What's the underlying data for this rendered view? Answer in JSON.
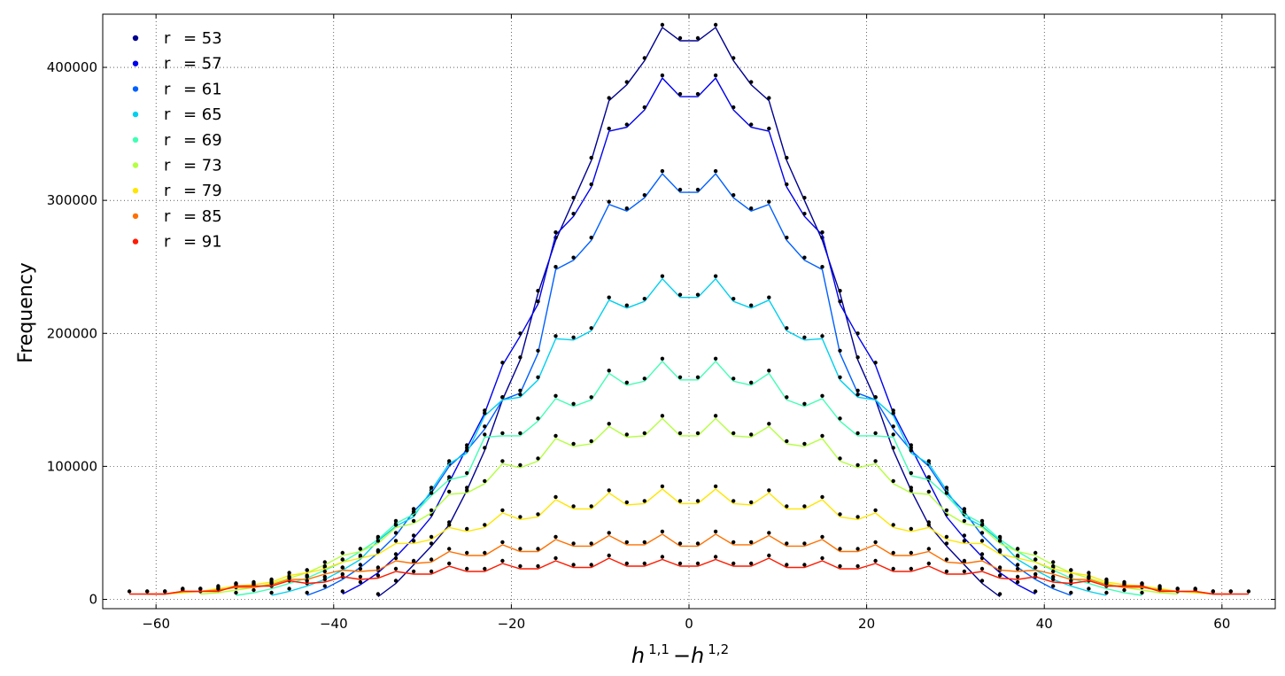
{
  "chart_data": {
    "type": "line",
    "xlabel": "h 1,1 −h 1,2",
    "xlabel_parts": {
      "h1": "h",
      "sup1": "1,1",
      "minus": "−",
      "h2": "h",
      "sup2": "1,2"
    },
    "ylabel": "Frequency",
    "xlim": [
      -66,
      66
    ],
    "ylim": [
      -7000,
      440000
    ],
    "xticks": [
      -60,
      -40,
      -20,
      0,
      20,
      40,
      60
    ],
    "yticks": [
      0,
      100000,
      200000,
      300000,
      400000
    ],
    "xtick_labels": [
      "−60",
      "−40",
      "−20",
      "0",
      "20",
      "40",
      "60"
    ],
    "ytick_labels": [
      "0",
      "100000",
      "200000",
      "300000",
      "400000"
    ],
    "grid": true,
    "markers": "black dots",
    "legend_position": "top-left",
    "series": [
      {
        "name": "r  = 53",
        "label_r": "r",
        "label_val": "= 53",
        "color": "#00008f",
        "x": [
          -35,
          -33,
          -31,
          -29,
          -27,
          -25,
          -23,
          -21,
          -19,
          -17,
          -15,
          -13,
          -11,
          -9,
          -7,
          -5,
          -3,
          -1,
          1,
          3,
          5,
          7,
          9,
          11,
          13,
          15,
          17,
          19,
          21,
          23,
          25,
          27,
          29,
          31,
          33,
          35
        ],
        "y": [
          2000,
          12000,
          26000,
          40000,
          56000,
          82000,
          112000,
          150000,
          180000,
          230000,
          270000,
          300000,
          330000,
          375000,
          387000,
          405000,
          430000,
          420000,
          420000,
          430000,
          405000,
          387000,
          375000,
          330000,
          300000,
          270000,
          230000,
          180000,
          150000,
          112000,
          82000,
          56000,
          40000,
          26000,
          12000,
          2000
        ]
      },
      {
        "name": "r  = 57",
        "label_r": "r",
        "label_val": "= 57",
        "color": "#0000ee",
        "x": [
          -39,
          -37,
          -35,
          -33,
          -31,
          -29,
          -27,
          -25,
          -23,
          -21,
          -19,
          -17,
          -15,
          -13,
          -11,
          -9,
          -7,
          -5,
          -3,
          -1,
          1,
          3,
          5,
          7,
          9,
          11,
          13,
          15,
          17,
          19,
          21,
          23,
          25,
          27,
          29,
          31,
          33,
          35,
          37,
          39
        ],
        "y": [
          4000,
          11000,
          20000,
          32000,
          46000,
          62000,
          88000,
          114000,
          140000,
          176000,
          198000,
          222000,
          274000,
          288000,
          310000,
          352000,
          355000,
          368000,
          392000,
          378000,
          378000,
          392000,
          368000,
          355000,
          352000,
          310000,
          288000,
          274000,
          222000,
          198000,
          176000,
          140000,
          114000,
          88000,
          62000,
          46000,
          32000,
          20000,
          11000,
          4000
        ]
      },
      {
        "name": "r  = 61",
        "label_r": "r",
        "label_val": "= 61",
        "color": "#0060ff",
        "x": [
          -43,
          -41,
          -39,
          -37,
          -35,
          -33,
          -31,
          -29,
          -27,
          -25,
          -23,
          -21,
          -19,
          -17,
          -15,
          -13,
          -11,
          -9,
          -7,
          -5,
          -3,
          -1,
          1,
          3,
          5,
          7,
          9,
          11,
          13,
          15,
          17,
          19,
          21,
          23,
          25,
          27,
          29,
          31,
          33,
          35,
          37,
          39,
          41,
          43
        ],
        "y": [
          3000,
          8000,
          15000,
          24000,
          35000,
          48000,
          66000,
          80000,
          100000,
          112000,
          128000,
          150000,
          155000,
          185000,
          248000,
          255000,
          270000,
          297000,
          292000,
          302000,
          320000,
          306000,
          306000,
          320000,
          302000,
          292000,
          297000,
          270000,
          255000,
          248000,
          185000,
          155000,
          150000,
          128000,
          112000,
          100000,
          80000,
          66000,
          48000,
          35000,
          24000,
          15000,
          8000,
          3000
        ]
      },
      {
        "name": "r  = 65",
        "label_r": "r",
        "label_val": "= 65",
        "color": "#00d0ef",
        "x": [
          -47,
          -45,
          -43,
          -41,
          -39,
          -37,
          -35,
          -33,
          -31,
          -29,
          -27,
          -25,
          -23,
          -21,
          -19,
          -17,
          -15,
          -13,
          -11,
          -9,
          -7,
          -5,
          -3,
          -1,
          1,
          3,
          5,
          7,
          9,
          11,
          13,
          15,
          17,
          19,
          21,
          23,
          25,
          27,
          29,
          31,
          33,
          35,
          37,
          39,
          41,
          43,
          45,
          47
        ],
        "y": [
          3000,
          6000,
          10000,
          15000,
          22000,
          30000,
          44000,
          55000,
          62000,
          82000,
          102000,
          110000,
          138000,
          150000,
          152000,
          165000,
          196000,
          195000,
          202000,
          225000,
          219000,
          224000,
          241000,
          227000,
          227000,
          241000,
          224000,
          219000,
          225000,
          202000,
          195000,
          196000,
          165000,
          152000,
          150000,
          138000,
          110000,
          102000,
          82000,
          62000,
          55000,
          44000,
          30000,
          22000,
          15000,
          10000,
          6000,
          3000
        ]
      },
      {
        "name": "r  = 69",
        "label_r": "r",
        "label_val": "= 69",
        "color": "#40ffb4",
        "x": [
          -51,
          -49,
          -47,
          -45,
          -43,
          -41,
          -39,
          -37,
          -35,
          -33,
          -31,
          -29,
          -27,
          -25,
          -23,
          -21,
          -19,
          -17,
          -15,
          -13,
          -11,
          -9,
          -7,
          -5,
          -3,
          -1,
          1,
          3,
          5,
          7,
          9,
          11,
          13,
          15,
          17,
          19,
          21,
          23,
          25,
          27,
          29,
          31,
          33,
          35,
          37,
          39,
          41,
          43,
          45,
          47,
          49,
          51
        ],
        "y": [
          3000,
          5000,
          8000,
          12000,
          16000,
          22000,
          28000,
          36000,
          45000,
          57000,
          64000,
          78000,
          90000,
          93000,
          122000,
          123000,
          123000,
          134000,
          151000,
          145000,
          150000,
          170000,
          161000,
          164000,
          179000,
          165000,
          165000,
          179000,
          164000,
          161000,
          170000,
          150000,
          145000,
          151000,
          134000,
          123000,
          123000,
          122000,
          93000,
          90000,
          78000,
          64000,
          57000,
          45000,
          36000,
          28000,
          22000,
          16000,
          12000,
          8000,
          5000,
          3000
        ]
      },
      {
        "name": "r  = 73",
        "label_r": "r",
        "label_val": "= 73",
        "color": "#b4ff40",
        "x": [
          -55,
          -53,
          -51,
          -49,
          -47,
          -45,
          -43,
          -41,
          -39,
          -37,
          -35,
          -33,
          -31,
          -29,
          -27,
          -25,
          -23,
          -21,
          -19,
          -17,
          -15,
          -13,
          -11,
          -9,
          -7,
          -5,
          -3,
          -1,
          1,
          3,
          5,
          7,
          9,
          11,
          13,
          15,
          17,
          19,
          21,
          23,
          25,
          27,
          29,
          31,
          33,
          35,
          37,
          39,
          41,
          43,
          45,
          47,
          49,
          51,
          53,
          55
        ],
        "y": [
          4000,
          5000,
          7000,
          9000,
          12000,
          16000,
          20000,
          26000,
          33000,
          36000,
          42000,
          54000,
          57000,
          65000,
          79000,
          80000,
          87000,
          102000,
          99000,
          104000,
          121000,
          115000,
          117000,
          130000,
          122000,
          123000,
          136000,
          123000,
          123000,
          136000,
          123000,
          122000,
          130000,
          117000,
          115000,
          121000,
          104000,
          99000,
          102000,
          87000,
          80000,
          79000,
          65000,
          57000,
          54000,
          42000,
          36000,
          33000,
          26000,
          20000,
          16000,
          12000,
          9000,
          7000,
          5000,
          4000
        ]
      },
      {
        "name": "r  = 79",
        "label_r": "r",
        "label_val": "= 79",
        "color": "#ffe600",
        "x": [
          -59,
          -57,
          -55,
          -53,
          -51,
          -49,
          -47,
          -45,
          -43,
          -41,
          -39,
          -37,
          -35,
          -33,
          -31,
          -29,
          -27,
          -25,
          -23,
          -21,
          -19,
          -17,
          -15,
          -13,
          -11,
          -9,
          -7,
          -5,
          -3,
          -1,
          1,
          3,
          5,
          7,
          9,
          11,
          13,
          15,
          17,
          19,
          21,
          23,
          25,
          27,
          29,
          31,
          33,
          35,
          37,
          39,
          41,
          43,
          45,
          47,
          49,
          51,
          53,
          55,
          57,
          59
        ],
        "y": [
          4000,
          5000,
          6000,
          8000,
          10000,
          11000,
          13000,
          18000,
          20000,
          23000,
          28000,
          31000,
          34000,
          42000,
          42000,
          45000,
          54000,
          51000,
          54000,
          65000,
          60000,
          62000,
          75000,
          68000,
          68000,
          80000,
          71000,
          72000,
          83000,
          72000,
          72000,
          83000,
          72000,
          71000,
          80000,
          68000,
          68000,
          75000,
          62000,
          60000,
          65000,
          54000,
          51000,
          54000,
          45000,
          42000,
          42000,
          34000,
          31000,
          28000,
          23000,
          20000,
          18000,
          13000,
          11000,
          10000,
          8000,
          6000,
          5000,
          4000
        ]
      },
      {
        "name": "r  = 85",
        "label_r": "r",
        "label_val": "= 85",
        "color": "#ff7000",
        "x": [
          -61,
          -59,
          -57,
          -55,
          -53,
          -51,
          -49,
          -47,
          -45,
          -43,
          -41,
          -39,
          -37,
          -35,
          -33,
          -31,
          -29,
          -27,
          -25,
          -23,
          -21,
          -19,
          -17,
          -15,
          -13,
          -11,
          -9,
          -7,
          -5,
          -3,
          -1,
          1,
          3,
          5,
          7,
          9,
          11,
          13,
          15,
          17,
          19,
          21,
          23,
          25,
          27,
          29,
          31,
          33,
          35,
          37,
          39,
          41,
          43,
          45,
          47,
          49,
          51,
          53,
          55,
          57,
          59,
          61
        ],
        "y": [
          4000,
          4000,
          6000,
          6000,
          7000,
          9000,
          9000,
          11000,
          15000,
          15000,
          19000,
          22000,
          21000,
          22000,
          29000,
          27000,
          28000,
          36000,
          33000,
          33000,
          41000,
          36000,
          36000,
          45000,
          40000,
          40000,
          48000,
          41000,
          41000,
          49000,
          40000,
          40000,
          49000,
          41000,
          41000,
          48000,
          40000,
          40000,
          45000,
          36000,
          36000,
          41000,
          33000,
          33000,
          36000,
          28000,
          27000,
          29000,
          22000,
          21000,
          22000,
          19000,
          15000,
          15000,
          11000,
          9000,
          9000,
          7000,
          6000,
          6000,
          4000,
          4000
        ]
      },
      {
        "name": "r  = 91",
        "label_r": "r",
        "label_val": "= 91",
        "color": "#ff1a00",
        "x": [
          -63,
          -61,
          -59,
          -57,
          -55,
          -53,
          -51,
          -49,
          -47,
          -45,
          -43,
          -41,
          -39,
          -37,
          -35,
          -33,
          -31,
          -29,
          -27,
          -25,
          -23,
          -21,
          -19,
          -17,
          -15,
          -13,
          -11,
          -9,
          -7,
          -5,
          -3,
          -1,
          1,
          3,
          5,
          7,
          9,
          11,
          13,
          15,
          17,
          19,
          21,
          23,
          25,
          27,
          29,
          31,
          33,
          35,
          37,
          39,
          41,
          43,
          45,
          47,
          49,
          51,
          53,
          55,
          57,
          59,
          61,
          63
        ],
        "y": [
          4000,
          4000,
          4000,
          6000,
          6000,
          6000,
          10000,
          10000,
          10000,
          14000,
          12000,
          13000,
          17000,
          15000,
          16000,
          21000,
          19000,
          19000,
          25000,
          21000,
          21000,
          27000,
          23000,
          23000,
          29000,
          24000,
          24000,
          31000,
          25000,
          25000,
          30000,
          25000,
          25000,
          30000,
          25000,
          25000,
          31000,
          24000,
          24000,
          29000,
          23000,
          23000,
          27000,
          21000,
          21000,
          25000,
          19000,
          19000,
          21000,
          16000,
          15000,
          17000,
          13000,
          12000,
          14000,
          10000,
          10000,
          10000,
          6000,
          6000,
          6000,
          4000,
          4000,
          4000
        ]
      }
    ]
  }
}
